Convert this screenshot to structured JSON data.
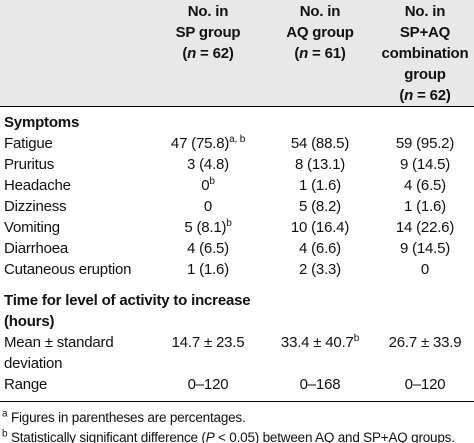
{
  "table": {
    "columns": [
      {
        "lines": [
          "No. in",
          "SP group"
        ],
        "n": {
          "open": "(",
          "var": "n",
          "rest": " = 62)"
        }
      },
      {
        "lines": [
          "No. in",
          "AQ group"
        ],
        "n": {
          "open": "(",
          "var": "n",
          "rest": " = 61)"
        }
      },
      {
        "lines": [
          "No. in SP+AQ",
          "combination",
          "group"
        ],
        "n": {
          "open": "(",
          "var": "n",
          "rest": " = 62)"
        }
      }
    ],
    "sections": [
      {
        "title": "Symptoms",
        "rows": [
          {
            "label": "Fatigue",
            "cells": [
              {
                "text": "47 (75.8)",
                "sup": "a, b"
              },
              {
                "text": "54 (88.5)"
              },
              {
                "text": "59 (95.2)"
              }
            ]
          },
          {
            "label": "Pruritus",
            "cells": [
              {
                "text": "3 (4.8)"
              },
              {
                "text": "8 (13.1)"
              },
              {
                "text": "9 (14.5)"
              }
            ]
          },
          {
            "label": "Headache",
            "cells": [
              {
                "text": "0",
                "sup": "b"
              },
              {
                "text": "1 (1.6)"
              },
              {
                "text": "4 (6.5)"
              }
            ]
          },
          {
            "label": "Dizziness",
            "cells": [
              {
                "text": "0"
              },
              {
                "text": "5 (8.2)"
              },
              {
                "text": "1 (1.6)"
              }
            ]
          },
          {
            "label": "Vomiting",
            "cells": [
              {
                "text": "5 (8.1)",
                "sup": "b"
              },
              {
                "text": "10 (16.4)"
              },
              {
                "text": "14 (22.6)"
              }
            ]
          },
          {
            "label": "Diarrhoea",
            "cells": [
              {
                "text": "4 (6.5)"
              },
              {
                "text": "4 (6.6)"
              },
              {
                "text": "9 (14.5)"
              }
            ]
          },
          {
            "label": "Cutaneous eruption",
            "cells": [
              {
                "text": "1 (1.6)"
              },
              {
                "text": "2 (3.3)"
              },
              {
                "text": "0"
              }
            ]
          }
        ]
      },
      {
        "title": "Time for level of activity to increase (hours)",
        "rows": [
          {
            "label": "Mean ± standard deviation",
            "cells": [
              {
                "text": "14.7 ± 23.5"
              },
              {
                "text": "33.4 ± 40.7",
                "sup": "b"
              },
              {
                "text": "26.7 ± 33.9"
              }
            ]
          },
          {
            "label": "Range",
            "cells": [
              {
                "text": "0–120"
              },
              {
                "text": "0–168"
              },
              {
                "text": "0–120"
              }
            ]
          }
        ]
      }
    ],
    "footnotes": [
      {
        "mark": "a",
        "parts": [
          {
            "text": "Figures in parentheses are percentages."
          }
        ]
      },
      {
        "mark": "b",
        "parts": [
          {
            "text": "Statistically significant difference ("
          },
          {
            "text": "P",
            "italic": true
          },
          {
            "text": " < 0.05) between AQ and SP+AQ groups."
          }
        ]
      }
    ]
  }
}
